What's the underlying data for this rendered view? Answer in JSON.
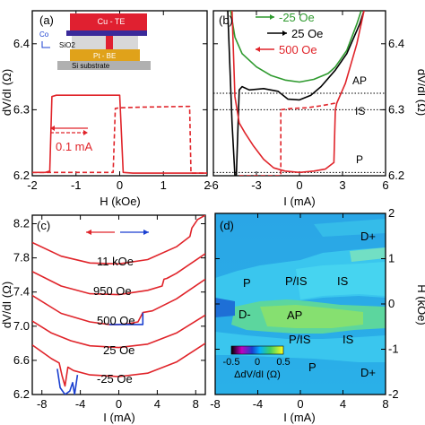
{
  "figure": {
    "colors": {
      "red": "#e0242a",
      "black": "#000000",
      "green": "#2e9a2e",
      "blue": "#1a3fd0",
      "dotted": "#000000"
    }
  },
  "chart_data": [
    {
      "type": "line",
      "panel_label": "(a)",
      "xlabel": "H (kOe)",
      "ylabel": "dV/dI (Ω)",
      "xlim": [
        -2,
        2
      ],
      "ylim": [
        6.2,
        6.45
      ],
      "xticks": [
        -2,
        -1,
        0,
        1,
        2
      ],
      "yticks": [
        6.2,
        6.3,
        6.4
      ],
      "tick_label_position": "left",
      "annotation": "0.1 mA",
      "inset_labels": [
        "Co",
        "Cu - TE",
        "SiO2",
        "Pt - BE",
        "Si substrate"
      ],
      "series": [
        {
          "style": "solid",
          "color": "red",
          "points": [
            [
              -2,
              6.205
            ],
            [
              -1.7,
              6.205
            ],
            [
              -1.6,
              6.207
            ],
            [
              -1.55,
              6.32
            ],
            [
              -1.45,
              6.322
            ],
            [
              -0.3,
              6.322
            ],
            [
              -0.05,
              6.322
            ],
            [
              0,
              6.322
            ],
            [
              0.08,
              6.205
            ],
            [
              0.3,
              6.204
            ],
            [
              1.0,
              6.204
            ],
            [
              2.0,
              6.204
            ]
          ]
        },
        {
          "style": "dashed",
          "color": "red",
          "points": [
            [
              -2,
              6.205
            ],
            [
              -0.5,
              6.205
            ],
            [
              -0.15,
              6.205
            ],
            [
              -0.1,
              6.302
            ],
            [
              0,
              6.303
            ],
            [
              0.5,
              6.304
            ],
            [
              1.5,
              6.305
            ],
            [
              1.6,
              6.305
            ],
            [
              1.63,
              6.204
            ],
            [
              2.0,
              6.204
            ]
          ]
        }
      ]
    },
    {
      "type": "line",
      "panel_label": "(b)",
      "xlabel": "I (mA)",
      "ylabel": "dV/dI (Ω)",
      "xlim": [
        -6,
        6
      ],
      "ylim": [
        6.2,
        6.45
      ],
      "xticks": [
        -6,
        -3,
        0,
        3,
        6
      ],
      "yticks": [
        6.2,
        6.3,
        6.4
      ],
      "tick_label_position": "right",
      "state_labels": [
        "AP",
        "IS",
        "P"
      ],
      "reference_lines": [
        6.325,
        6.3,
        6.205
      ],
      "series": [
        {
          "name": "-25 Oe",
          "style": "solid",
          "color": "green",
          "points": [
            [
              -4.8,
              6.45
            ],
            [
              -4.5,
              6.41
            ],
            [
              -4,
              6.385
            ],
            [
              -3,
              6.365
            ],
            [
              -2,
              6.352
            ],
            [
              -1,
              6.345
            ],
            [
              0,
              6.342
            ],
            [
              1,
              6.346
            ],
            [
              2,
              6.355
            ],
            [
              2.5,
              6.365
            ],
            [
              3.3,
              6.39
            ],
            [
              4,
              6.43
            ],
            [
              4.3,
              6.45
            ]
          ]
        },
        {
          "name": "25 Oe",
          "style": "solid",
          "color": "black",
          "points": [
            [
              -5.0,
              6.45
            ],
            [
              -4.7,
              6.28
            ],
            [
              -4.5,
              6.2
            ],
            [
              -4.4,
              6.2
            ],
            [
              -4.2,
              6.33
            ],
            [
              -4.0,
              6.335
            ],
            [
              -3.5,
              6.33
            ],
            [
              -2.5,
              6.332
            ],
            [
              -1.5,
              6.328
            ],
            [
              -0.8,
              6.316
            ],
            [
              0,
              6.315
            ],
            [
              0.8,
              6.322
            ],
            [
              1.5,
              6.335
            ],
            [
              2.5,
              6.36
            ],
            [
              3.3,
              6.385
            ],
            [
              4.2,
              6.43
            ],
            [
              4.5,
              6.45
            ]
          ]
        },
        {
          "name": "500 Oe",
          "style": "solid",
          "color": "red",
          "points": [
            [
              -4.7,
              6.45
            ],
            [
              -4.5,
              6.32
            ],
            [
              -4.2,
              6.28
            ],
            [
              -3.8,
              6.265
            ],
            [
              -3.2,
              6.245
            ],
            [
              -2.5,
              6.225
            ],
            [
              -1.8,
              6.212
            ],
            [
              -1,
              6.207
            ],
            [
              0,
              6.205
            ],
            [
              1,
              6.207
            ],
            [
              1.8,
              6.21
            ],
            [
              2.4,
              6.22
            ],
            [
              2.5,
              6.3
            ],
            [
              2.6,
              6.31
            ],
            [
              3.2,
              6.34
            ],
            [
              4,
              6.4
            ],
            [
              4.5,
              6.45
            ]
          ]
        },
        {
          "name": "",
          "style": "dashed",
          "color": "red",
          "points": [
            [
              -4.2,
              6.2
            ],
            [
              -4.2,
              6.2
            ],
            [
              -1.3,
              6.2
            ],
            [
              -1.3,
              6.3
            ],
            [
              -0.5,
              6.302
            ],
            [
              0.5,
              6.303
            ],
            [
              1.5,
              6.306
            ],
            [
              2.5,
              6.31
            ]
          ]
        }
      ]
    },
    {
      "type": "line",
      "panel_label": "(c)",
      "xlabel": "I (mA)",
      "ylabel": "dV/dI (Ω)",
      "xlim": [
        -9,
        9
      ],
      "ylim": [
        6.2,
        8.3
      ],
      "xticks": [
        -8,
        -4,
        0,
        4,
        8
      ],
      "yticks": [
        6.2,
        6.6,
        7.0,
        7.4,
        7.8,
        8.2
      ],
      "curve_labels": [
        "11 kOe",
        "950 Oe",
        "500 Oe",
        "25 Oe",
        "-25 Oe"
      ],
      "series": [
        {
          "name": "11 kOe",
          "color": "red",
          "points": [
            [
              -9,
              7.98
            ],
            [
              -6,
              7.82
            ],
            [
              -3,
              7.74
            ],
            [
              0,
              7.73
            ],
            [
              3,
              7.78
            ],
            [
              6,
              7.93
            ],
            [
              7.4,
              8.05
            ],
            [
              7.6,
              8.15
            ],
            [
              8.2,
              8.25
            ],
            [
              9,
              8.3
            ]
          ]
        },
        {
          "name": "950 Oe",
          "color": "red",
          "points": [
            [
              -9,
              7.64
            ],
            [
              -6,
              7.47
            ],
            [
              -3,
              7.38
            ],
            [
              0,
              7.37
            ],
            [
              3,
              7.42
            ],
            [
              4.5,
              7.47
            ],
            [
              4.7,
              7.55
            ],
            [
              5,
              7.56
            ],
            [
              6,
              7.62
            ],
            [
              9,
              7.85
            ]
          ]
        },
        {
          "name": "500 Oe",
          "color": "red",
          "points": [
            [
              -9,
              7.36
            ],
            [
              -6,
              7.15
            ],
            [
              -3,
              7.05
            ],
            [
              -1,
              7.02
            ],
            [
              0,
              7.02
            ],
            [
              1,
              7.03
            ],
            [
              2,
              7.05
            ],
            [
              2.5,
              7.16
            ],
            [
              3.5,
              7.18
            ],
            [
              6,
              7.32
            ],
            [
              9,
              7.55
            ]
          ]
        },
        {
          "name": "500 Oe reverse",
          "color": "blue",
          "points": [
            [
              -1,
              7.02
            ],
            [
              -1,
              7.02
            ],
            [
              2.5,
              7.02
            ],
            [
              2.5,
              7.16
            ]
          ]
        },
        {
          "name": "25 Oe",
          "color": "red",
          "points": [
            [
              -9,
              7.06
            ],
            [
              -7,
              6.92
            ],
            [
              -5,
              6.83
            ],
            [
              -3,
              6.77
            ],
            [
              0,
              6.75
            ],
            [
              3,
              6.79
            ],
            [
              6,
              6.92
            ],
            [
              9,
              7.13
            ]
          ]
        },
        {
          "name": "-25 Oe",
          "color": "red",
          "points": [
            [
              -9,
              6.78
            ],
            [
              -7,
              6.62
            ],
            [
              -6.2,
              6.57
            ],
            [
              -5.9,
              6.42
            ],
            [
              -5.6,
              6.3
            ],
            [
              -5.3,
              6.52
            ],
            [
              -5.0,
              6.5
            ],
            [
              -4.7,
              6.48
            ],
            [
              -3,
              6.43
            ],
            [
              0,
              6.41
            ],
            [
              3,
              6.45
            ],
            [
              6,
              6.58
            ],
            [
              9,
              6.8
            ]
          ]
        },
        {
          "name": "-25 Oe reverse",
          "color": "blue",
          "points": [
            [
              -6.4,
              6.5
            ],
            [
              -6.1,
              6.28
            ],
            [
              -5.6,
              6.2
            ],
            [
              -5.1,
              6.24
            ],
            [
              -4.8,
              6.34
            ],
            [
              -4.6,
              6.2
            ],
            [
              -4.3,
              6.43
            ]
          ]
        }
      ]
    },
    {
      "type": "heatmap",
      "panel_label": "(d)",
      "xlabel": "I (mA)",
      "ylabel": "H (kOe)",
      "xlim": [
        -8,
        8
      ],
      "ylim": [
        -2,
        2
      ],
      "xticks": [
        -8,
        -4,
        0,
        4,
        8
      ],
      "yticks": [
        -2,
        -1,
        0,
        1,
        2
      ],
      "colorbar": {
        "label": "ΔdV/dI (Ω)",
        "ticks": [
          "-0.5",
          "0",
          "0.5"
        ],
        "range": [
          -0.5,
          0.5
        ]
      },
      "region_labels": [
        "D+",
        "P",
        "P/IS",
        "IS",
        "D-",
        "AP",
        "P/IS",
        "IS",
        "P",
        "D+"
      ]
    }
  ]
}
